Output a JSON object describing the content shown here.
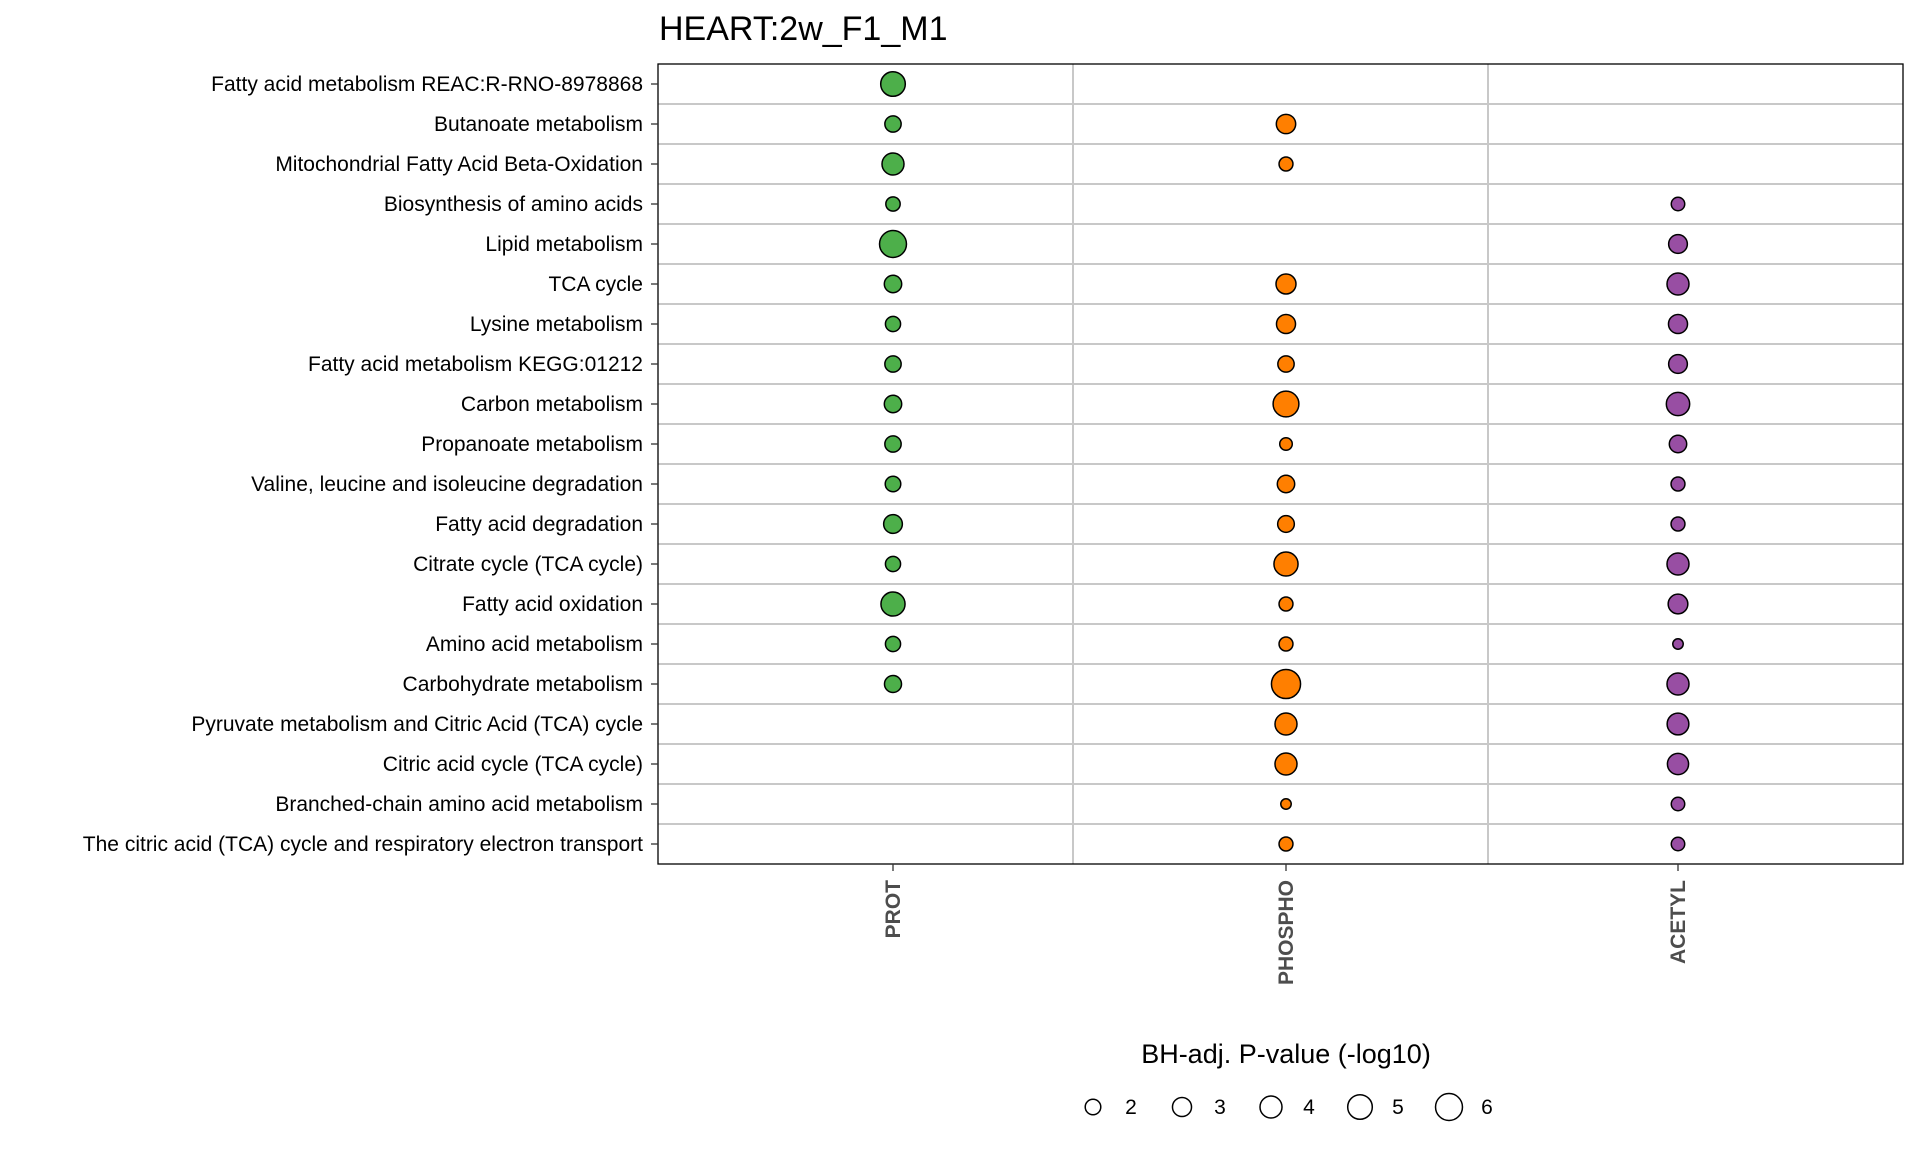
{
  "chart_data": {
    "type": "scatter",
    "title": "HEART:2w_F1_M1",
    "x_categories": [
      "PROT",
      "PHOSPHO",
      "ACETYL"
    ],
    "y_categories": [
      "Fatty acid metabolism REAC:R-RNO-8978868",
      "Butanoate metabolism",
      "Mitochondrial Fatty Acid Beta-Oxidation",
      "Biosynthesis of amino acids",
      "Lipid metabolism",
      "TCA cycle",
      "Lysine metabolism",
      "Fatty acid metabolism KEGG:01212",
      "Carbon metabolism",
      "Propanoate metabolism",
      "Valine, leucine and isoleucine degradation",
      "Fatty acid degradation",
      "Citrate cycle (TCA cycle)",
      "Fatty acid oxidation",
      "Amino acid metabolism",
      "Carbohydrate metabolism",
      "Pyruvate metabolism and Citric Acid (TCA) cycle",
      "Citric acid cycle (TCA cycle)",
      "Branched-chain amino acid metabolism",
      "The citric acid (TCA) cycle and respiratory electron transport"
    ],
    "series": [
      {
        "category": "PROT",
        "color": "#4DAF4A",
        "values": [
          5.0,
          2.2,
          4.0,
          1.7,
          6.0,
          2.5,
          1.9,
          2.2,
          2.5,
          2.2,
          2.0,
          2.9,
          1.9,
          4.8,
          1.9,
          2.4,
          null,
          null,
          null,
          null
        ]
      },
      {
        "category": "PHOSPHO",
        "color": "#FF7F00",
        "values": [
          null,
          3.1,
          1.6,
          null,
          null,
          3.3,
          3.0,
          2.2,
          5.5,
          1.3,
          2.5,
          2.3,
          4.8,
          1.6,
          1.6,
          7.0,
          4.0,
          4.0,
          0.9,
          1.6
        ]
      },
      {
        "category": "ACETYL",
        "color": "#984EA3",
        "values": [
          null,
          null,
          null,
          1.5,
          2.9,
          4.0,
          3.0,
          2.9,
          4.5,
          2.5,
          1.6,
          1.6,
          4.0,
          3.2,
          0.9,
          4.0,
          3.9,
          3.7,
          1.5,
          1.5
        ]
      }
    ],
    "size_legend": {
      "title": "BH-adj. P-value (-log10)",
      "breaks": [
        2,
        3,
        4,
        5,
        6
      ]
    },
    "grid": true,
    "legend_position": "bottom"
  }
}
